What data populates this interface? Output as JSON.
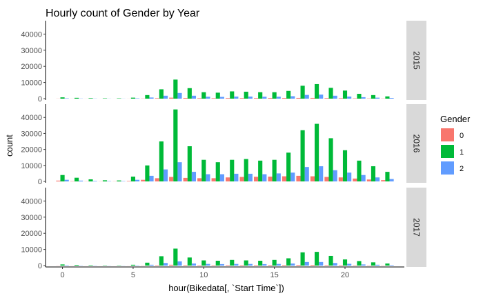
{
  "chart_data": {
    "type": "bar",
    "title": "Hourly count of Gender by Year",
    "xlabel": "hour(Bikedata[, `Start Time`])",
    "ylabel": "count",
    "xlim": [
      -1.2,
      24.2
    ],
    "ylim": [
      0,
      47000
    ],
    "x_ticks": [
      0,
      5,
      10,
      15,
      20
    ],
    "y_ticks": [
      0,
      10000,
      20000,
      30000,
      40000
    ],
    "x": [
      0,
      1,
      2,
      3,
      4,
      5,
      6,
      7,
      8,
      9,
      10,
      11,
      12,
      13,
      14,
      15,
      16,
      17,
      18,
      19,
      20,
      21,
      22,
      23
    ],
    "legend": {
      "title": "Gender",
      "entries": [
        "0",
        "1",
        "2"
      ],
      "position": "right"
    },
    "colors": {
      "0": "#F8766D",
      "1": "#00BA38",
      "2": "#619CFF"
    },
    "grid": false,
    "facets": [
      {
        "label": "2015",
        "series": [
          {
            "name": "0",
            "values": [
              50,
              30,
              20,
              10,
              10,
              30,
              100,
              300,
              600,
              400,
              300,
              300,
              350,
              350,
              350,
              400,
              400,
              450,
              450,
              350,
              300,
              200,
              150,
              100
            ]
          },
          {
            "name": "1",
            "values": [
              800,
              500,
              300,
              200,
              200,
              600,
              2200,
              5800,
              11800,
              6500,
              4000,
              3700,
              4500,
              4300,
              4000,
              4000,
              4800,
              8000,
              9000,
              6700,
              5000,
              3000,
              2200,
              1400
            ]
          },
          {
            "name": "2",
            "values": [
              200,
              100,
              80,
              50,
              50,
              200,
              700,
              1800,
              3500,
              1800,
              1200,
              1100,
              1300,
              1300,
              1200,
              1200,
              1500,
              2300,
              2500,
              1800,
              1300,
              900,
              600,
              400
            ]
          }
        ]
      },
      {
        "label": "2016",
        "series": [
          {
            "name": "0",
            "values": [
              500,
              200,
              100,
              100,
              100,
              300,
              1000,
              2000,
              2800,
              2200,
              2000,
              2000,
              2500,
              2800,
              2900,
              3000,
              3200,
              3500,
              3200,
              2800,
              2500,
              1800,
              1200,
              800
            ]
          },
          {
            "name": "1",
            "values": [
              4000,
              2300,
              1300,
              700,
              600,
              3000,
              10000,
              25000,
              45000,
              22000,
              13500,
              12000,
              13500,
              14000,
              13000,
              13500,
              18000,
              32000,
              36000,
              27000,
              19500,
              13000,
              9500,
              6000
            ]
          },
          {
            "name": "2",
            "values": [
              1000,
              500,
              300,
              200,
              200,
              1000,
              3500,
              7500,
              12000,
              6000,
              4500,
              4500,
              4800,
              4800,
              4500,
              5000,
              5500,
              9000,
              9500,
              7000,
              5500,
              4000,
              2500,
              1500
            ]
          }
        ]
      },
      {
        "label": "2017",
        "series": [
          {
            "name": "0",
            "values": [
              50,
              30,
              20,
              10,
              10,
              30,
              80,
              250,
              500,
              300,
              250,
              250,
              300,
              300,
              300,
              350,
              350,
              400,
              400,
              300,
              250,
              200,
              150,
              100
            ]
          },
          {
            "name": "1",
            "values": [
              700,
              400,
              250,
              150,
              150,
              500,
              1800,
              5800,
              10500,
              5000,
              3200,
              3000,
              3500,
              3200,
              3000,
              3500,
              4500,
              8200,
              8500,
              6000,
              3800,
              2800,
              2000,
              1300
            ]
          },
          {
            "name": "2",
            "values": [
              200,
              100,
              80,
              50,
              50,
              150,
              500,
              1600,
              2600,
              1300,
              1000,
              900,
              1000,
              1000,
              900,
              1000,
              1300,
              2200,
              2200,
              1600,
              1100,
              700,
              500,
              300
            ]
          }
        ]
      }
    ]
  }
}
